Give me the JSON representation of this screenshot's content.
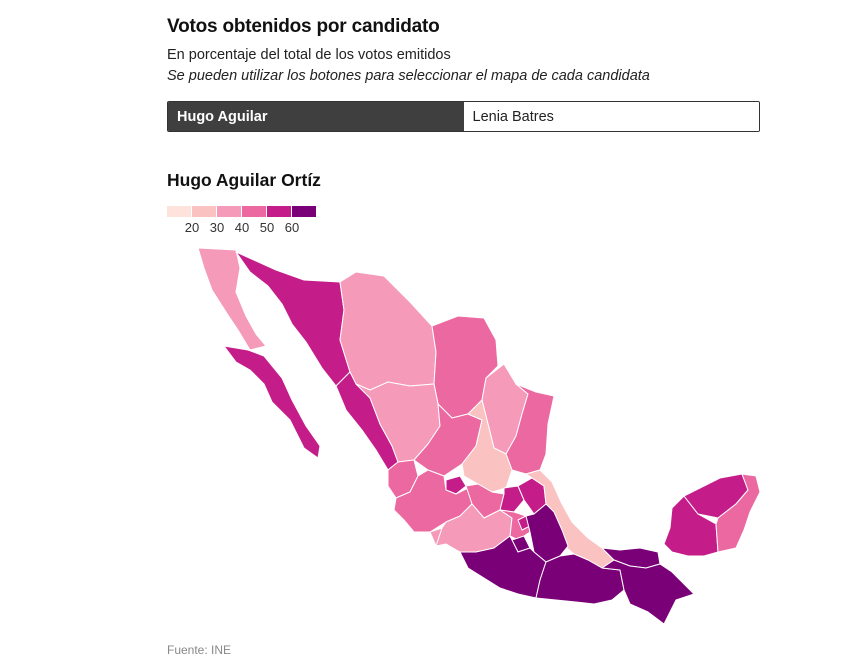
{
  "header": {
    "title": "Votos obtenidos por candidato",
    "subtitle": "En porcentaje del total de los votos emitidos",
    "note": "Se pueden utilizar los botones para seleccionar el mapa de cada candidata"
  },
  "toggle": {
    "options": [
      {
        "label": "Hugo Aguilar",
        "active": true
      },
      {
        "label": "Lenia Batres",
        "active": false
      }
    ]
  },
  "map": {
    "title": "Hugo Aguilar Ortíz",
    "legend": {
      "colors": [
        "#fde3dc",
        "#fbc2c2",
        "#f59ab8",
        "#ec68a0",
        "#c41d8a",
        "#7a0077"
      ],
      "ticks": [
        "20",
        "30",
        "40",
        "50",
        "60"
      ]
    }
  },
  "source": "Fuente: INE"
}
